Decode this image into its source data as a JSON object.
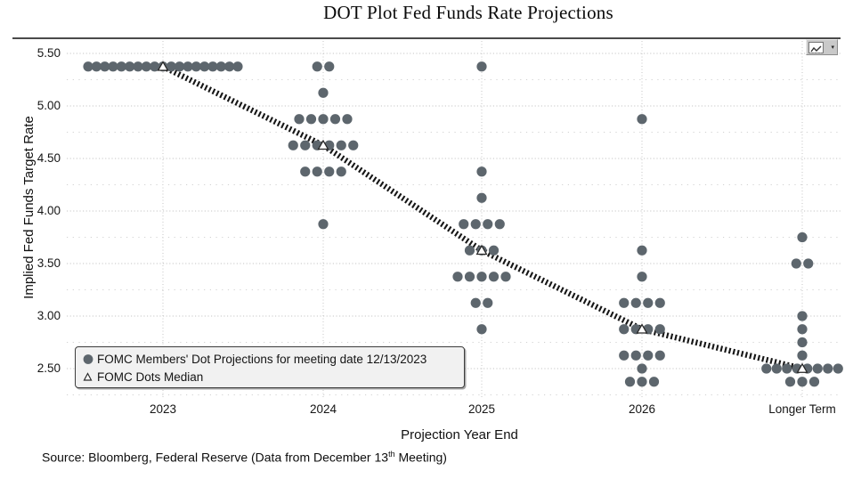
{
  "title": "DOT Plot Fed Funds Rate Projections",
  "toolbar": {
    "dropdown_glyph": "▾"
  },
  "y_axis": {
    "title": "Implied Fed Funds Target Rate"
  },
  "x_axis": {
    "title": "Projection Year End"
  },
  "legend": {
    "dots_label": "FOMC Members' Dot Projections for meeting date 12/13/2023",
    "median_label": "FOMC Dots Median"
  },
  "source": {
    "prefix": "Source: Bloomberg, Federal Reserve (Data from December 13",
    "superscript": "th",
    "suffix": " Meeting)"
  },
  "chart_data": {
    "type": "scatter",
    "title": "DOT Plot Fed Funds Rate Projections",
    "xlabel": "Projection Year End",
    "ylabel": "Implied Fed Funds Target Rate",
    "categories": [
      "2023",
      "2024",
      "2025",
      "2026",
      "Longer Term"
    ],
    "y_major_ticks": [
      5.5,
      5.0,
      4.5,
      4.0,
      3.5,
      3.0,
      2.5
    ],
    "y_minor_ticks": [
      5.25,
      4.75,
      4.25,
      3.75,
      3.25,
      2.75,
      2.25
    ],
    "ylim": [
      2.2,
      5.6
    ],
    "grid": "dotted major and minor horizontal, dotted vertical at each category",
    "legend_position": "bottom-left inside plot",
    "series": [
      {
        "name": "FOMC Members' Dot Projections for meeting date 12/13/2023",
        "marker": "filled-circle",
        "distributions": [
          {
            "category": "2023",
            "dots": [
              {
                "rate": 5.375,
                "count": 19
              }
            ]
          },
          {
            "category": "2024",
            "dots": [
              {
                "rate": 5.375,
                "count": 2
              },
              {
                "rate": 5.125,
                "count": 1
              },
              {
                "rate": 4.875,
                "count": 5
              },
              {
                "rate": 4.625,
                "count": 6
              },
              {
                "rate": 4.375,
                "count": 4
              },
              {
                "rate": 3.875,
                "count": 1
              }
            ]
          },
          {
            "category": "2025",
            "dots": [
              {
                "rate": 5.375,
                "count": 1
              },
              {
                "rate": 4.375,
                "count": 1
              },
              {
                "rate": 4.125,
                "count": 1
              },
              {
                "rate": 3.875,
                "count": 4
              },
              {
                "rate": 3.625,
                "count": 3
              },
              {
                "rate": 3.375,
                "count": 5
              },
              {
                "rate": 3.125,
                "count": 2
              },
              {
                "rate": 2.875,
                "count": 1
              }
            ]
          },
          {
            "category": "2026",
            "dots": [
              {
                "rate": 4.875,
                "count": 1
              },
              {
                "rate": 3.625,
                "count": 1
              },
              {
                "rate": 3.375,
                "count": 1
              },
              {
                "rate": 3.125,
                "count": 4
              },
              {
                "rate": 2.875,
                "count": 4
              },
              {
                "rate": 2.625,
                "count": 4
              },
              {
                "rate": 2.5,
                "count": 1
              },
              {
                "rate": 2.375,
                "count": 3
              }
            ]
          },
          {
            "category": "Longer Term",
            "dots": [
              {
                "rate": 3.75,
                "count": 1
              },
              {
                "rate": 3.5,
                "count": 2
              },
              {
                "rate": 3.0,
                "count": 1
              },
              {
                "rate": 2.875,
                "count": 1
              },
              {
                "rate": 2.75,
                "count": 1
              },
              {
                "rate": 2.625,
                "count": 1
              },
              {
                "rate": 2.5,
                "count": 8
              },
              {
                "rate": 2.375,
                "count": 3
              }
            ]
          }
        ]
      },
      {
        "name": "FOMC Dots Median",
        "marker": "open-triangle",
        "medians": [
          {
            "category": "2023",
            "rate": 5.375
          },
          {
            "category": "2024",
            "rate": 4.625
          },
          {
            "category": "2025",
            "rate": 3.625
          },
          {
            "category": "2026",
            "rate": 2.875
          },
          {
            "category": "Longer Term",
            "rate": 2.5
          }
        ],
        "trend_line": "thick hatched dashed line connecting medians"
      }
    ],
    "colors": {
      "dot": "#5d666d",
      "trend_line": "#161616",
      "grid_major": "#c6c6c6",
      "grid_minor": "#d2d2d2",
      "legend_bg": "#f1f1f1"
    }
  }
}
